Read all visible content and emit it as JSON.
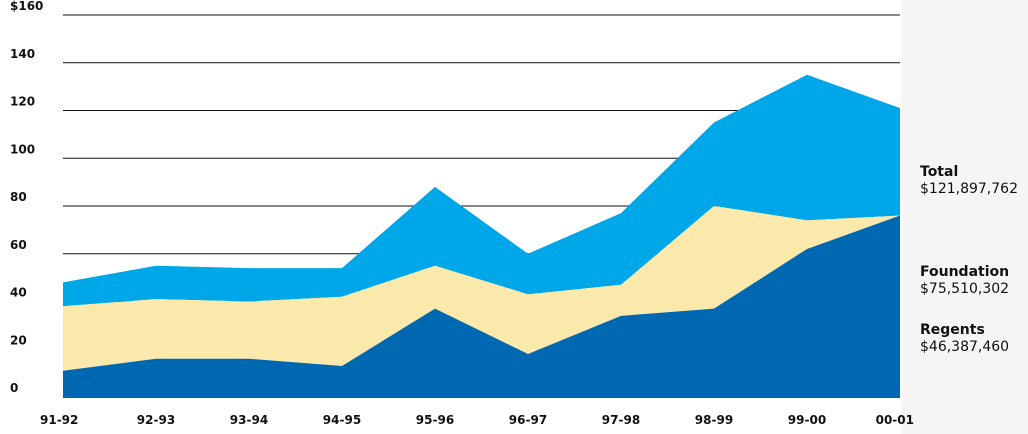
{
  "chart_data": {
    "type": "area",
    "stacked": true,
    "categories": [
      "91-92",
      "92-93",
      "93-94",
      "94-95",
      "95-96",
      "96-97",
      "97-98",
      "98-99",
      "99-00",
      "00-01"
    ],
    "series": [
      {
        "name": "Regents",
        "color": "#0068b0",
        "values": [
          11,
          16,
          16,
          13,
          37,
          18,
          34,
          37,
          62,
          76
        ]
      },
      {
        "name": "Foundation",
        "color": "#fbe9ab",
        "values": [
          27,
          25,
          24,
          29,
          18,
          25,
          13,
          43,
          12,
          0
        ]
      },
      {
        "name": "Total",
        "color": "#00a7e8",
        "values": [
          10,
          14,
          14,
          12,
          33,
          17,
          30,
          35,
          61,
          45
        ]
      }
    ],
    "ylim": [
      0,
      160
    ],
    "ytick_labels": [
      "0",
      "20",
      "40",
      "60",
      "80",
      "100",
      "120",
      "140",
      "$160"
    ],
    "ytick_values": [
      0,
      20,
      40,
      60,
      80,
      100,
      120,
      140,
      160
    ],
    "grid": true
  },
  "legend": {
    "total": {
      "name": "Total",
      "value": "$121,897,762"
    },
    "foundation": {
      "name": "Foundation",
      "value": "$75,510,302"
    },
    "regents": {
      "name": "Regents",
      "value": "$46,387,460"
    }
  }
}
